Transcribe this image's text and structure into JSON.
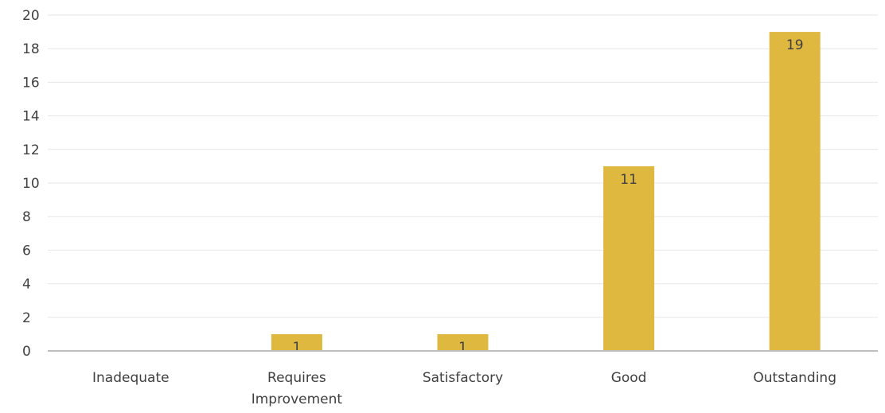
{
  "chart_data": {
    "type": "bar",
    "categories": [
      [
        "Inadequate"
      ],
      [
        "Requires",
        "Improvement"
      ],
      [
        "Satisfactory"
      ],
      [
        "Good"
      ],
      [
        "Outstanding"
      ]
    ],
    "series": [
      {
        "values": [
          0,
          1,
          1,
          11,
          19
        ],
        "color": "#dfb840"
      }
    ],
    "data_labels": [
      "",
      "1",
      "1",
      "11",
      "19"
    ],
    "ylim": [
      0,
      20
    ],
    "yticks": [
      "0",
      "2",
      "4",
      "6",
      "8",
      "10",
      "12",
      "14",
      "16",
      "18",
      "20"
    ],
    "grid": true,
    "grid_color": "#e6e6e6",
    "axis_color": "#bfbfbf",
    "title": "",
    "xlabel": "",
    "ylabel": ""
  }
}
